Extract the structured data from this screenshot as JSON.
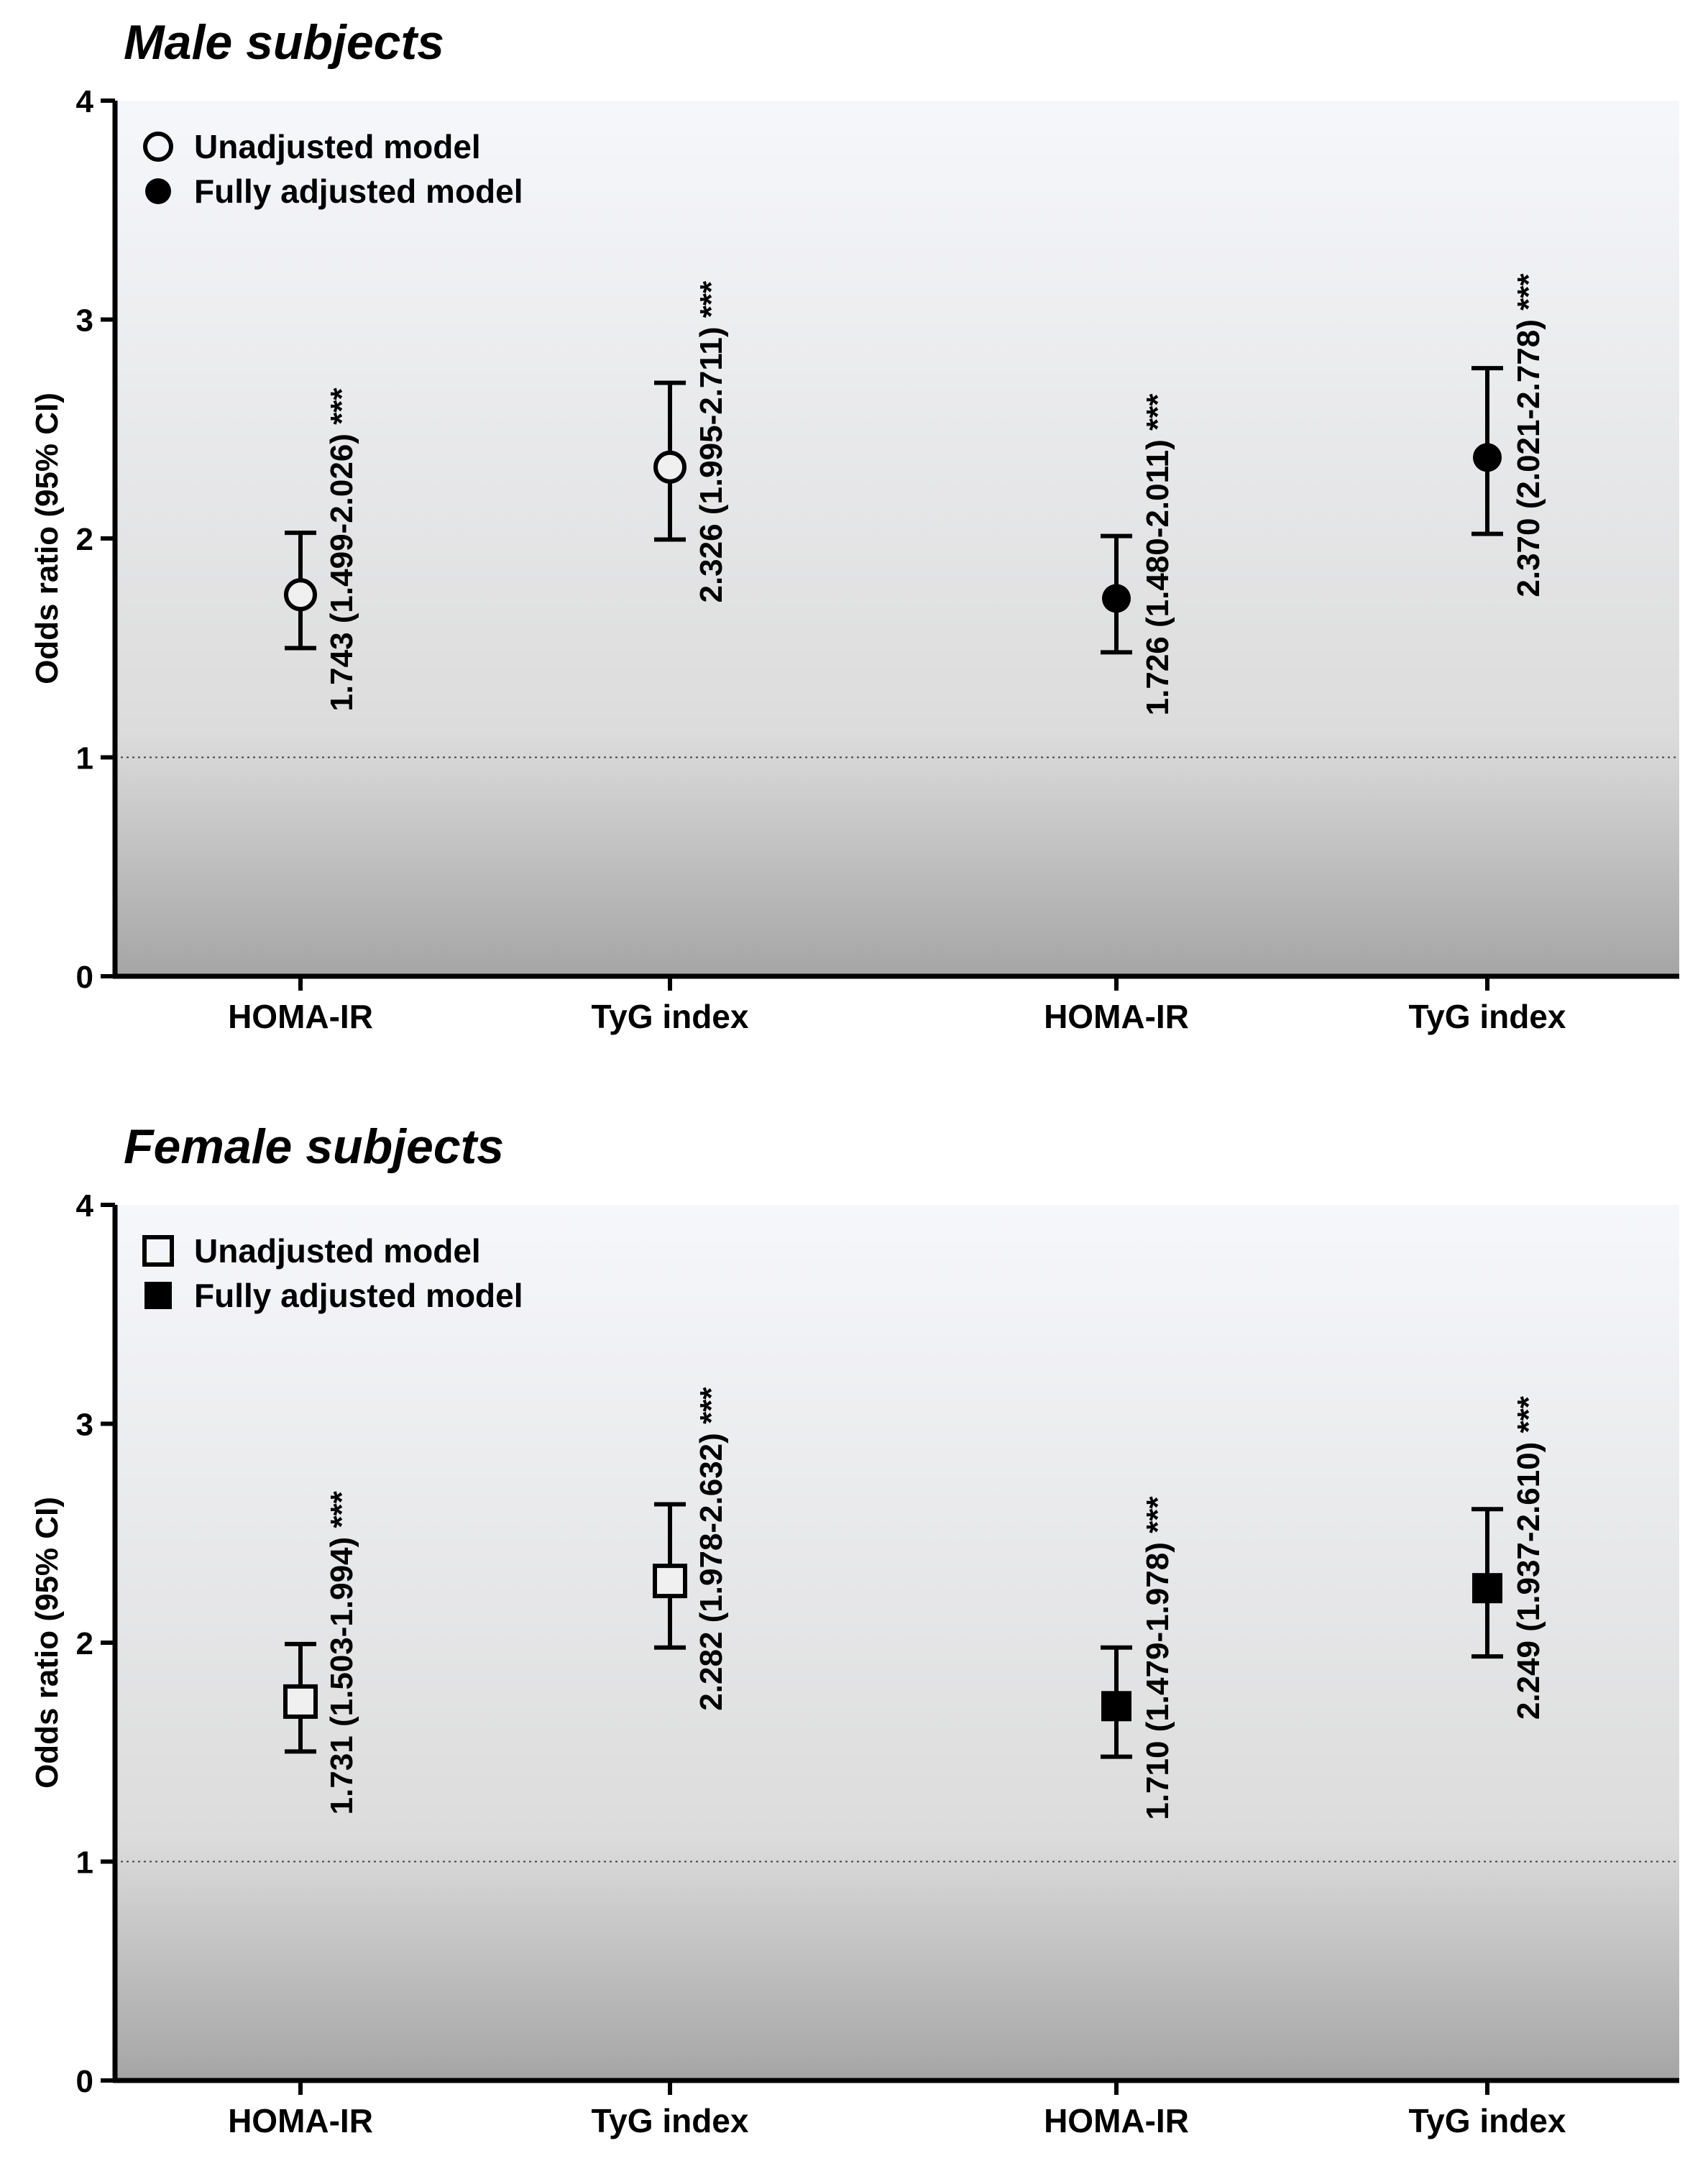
{
  "chart_data": [
    {
      "type": "scatter",
      "title": "Male subjects",
      "xlabel": "",
      "ylabel": "Odds ratio (95% CI)",
      "ylim": [
        0,
        4
      ],
      "yticks": [
        "0",
        "1",
        "2",
        "3",
        "4"
      ],
      "reference_line": 1,
      "categories": [
        "HOMA-IR",
        "TyG index",
        "HOMA-IR",
        "TyG index"
      ],
      "marker_shape": "circle",
      "legend": [
        {
          "label": "Unadjusted model",
          "filled": false
        },
        {
          "label": "Fully adjusted model",
          "filled": true
        }
      ],
      "legend_position": "top-left",
      "points": [
        {
          "category": "HOMA-IR",
          "model": "Unadjusted model",
          "filled": false,
          "or": 1.743,
          "lo": 1.499,
          "hi": 2.026,
          "label": "1.743 (1.499-2.026) ***"
        },
        {
          "category": "TyG index",
          "model": "Unadjusted model",
          "filled": false,
          "or": 2.326,
          "lo": 1.995,
          "hi": 2.711,
          "label": "2.326 (1.995-2.711) ***"
        },
        {
          "category": "HOMA-IR",
          "model": "Fully adjusted model",
          "filled": true,
          "or": 1.726,
          "lo": 1.48,
          "hi": 2.011,
          "label": "1.726 (1.480-2.011) ***"
        },
        {
          "category": "TyG index",
          "model": "Fully adjusted model",
          "filled": true,
          "or": 2.37,
          "lo": 2.021,
          "hi": 2.778,
          "label": "2.370 (2.021-2.778) ***"
        }
      ]
    },
    {
      "type": "scatter",
      "title": "Female subjects",
      "xlabel": "",
      "ylabel": "Odds ratio (95% CI)",
      "ylim": [
        0,
        4
      ],
      "yticks": [
        "0",
        "1",
        "2",
        "3",
        "4"
      ],
      "reference_line": 1,
      "categories": [
        "HOMA-IR",
        "TyG index",
        "HOMA-IR",
        "TyG index"
      ],
      "marker_shape": "square",
      "legend": [
        {
          "label": "Unadjusted model",
          "filled": false
        },
        {
          "label": "Fully adjusted model",
          "filled": true
        }
      ],
      "legend_position": "top-left",
      "points": [
        {
          "category": "HOMA-IR",
          "model": "Unadjusted model",
          "filled": false,
          "or": 1.731,
          "lo": 1.503,
          "hi": 1.994,
          "label": "1.731 (1.503-1.994) ***"
        },
        {
          "category": "TyG index",
          "model": "Unadjusted model",
          "filled": false,
          "or": 2.282,
          "lo": 1.978,
          "hi": 2.632,
          "label": "2.282 (1.978-2.632) ***"
        },
        {
          "category": "HOMA-IR",
          "model": "Fully adjusted model",
          "filled": true,
          "or": 1.71,
          "lo": 1.479,
          "hi": 1.978,
          "label": "1.710 (1.479-1.978) ***"
        },
        {
          "category": "TyG index",
          "model": "Fully adjusted model",
          "filled": true,
          "or": 2.249,
          "lo": 1.937,
          "hi": 2.61,
          "label": "2.249 (1.937-2.610) ***"
        }
      ]
    }
  ],
  "colors": {
    "marker": "#000000",
    "plot_bg_top": "#f6f7fb",
    "plot_bg_mid": "#dcdcdc",
    "plot_bg_bottom": "#a5a5a5",
    "reference_line": "#444444"
  }
}
